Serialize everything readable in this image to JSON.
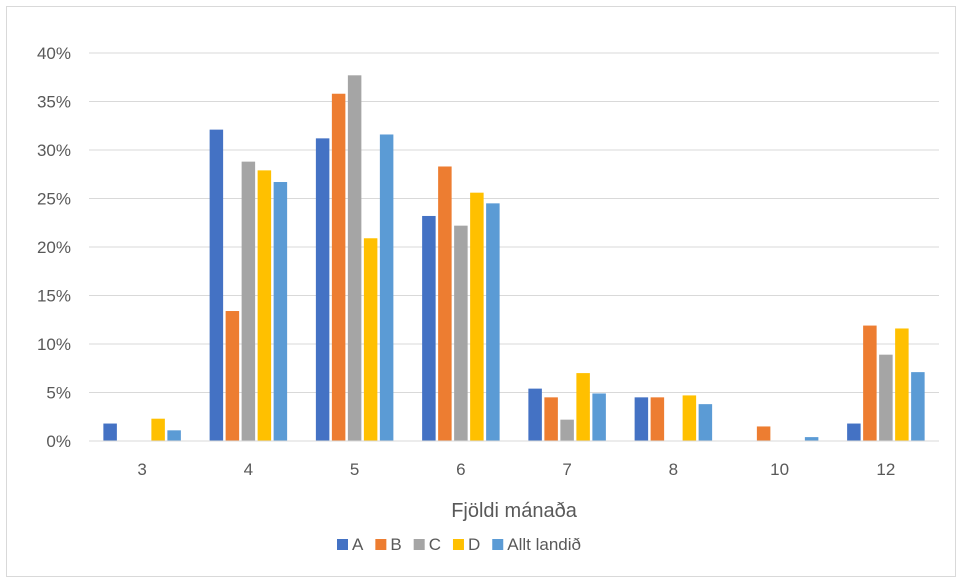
{
  "chart_data": {
    "type": "bar",
    "title": "",
    "xlabel": "Fjöldi mánaða",
    "ylabel": "",
    "categories": [
      "3",
      "4",
      "5",
      "6",
      "7",
      "8",
      "10",
      "12"
    ],
    "ylim": [
      0,
      0.4
    ],
    "yticks": [
      0,
      0.05,
      0.1,
      0.15,
      0.2,
      0.25,
      0.3,
      0.35,
      0.4
    ],
    "ytick_labels": [
      "0%",
      "5%",
      "10%",
      "15%",
      "20%",
      "25%",
      "30%",
      "35%",
      "40%"
    ],
    "grid": true,
    "legend_position": "bottom",
    "series": [
      {
        "name": "A",
        "color": "#4472C4",
        "values": [
          0.018,
          0.321,
          0.312,
          0.232,
          0.054,
          0.045,
          0.0,
          0.018
        ]
      },
      {
        "name": "B",
        "color": "#ED7D31",
        "values": [
          0.0,
          0.134,
          0.358,
          0.283,
          0.045,
          0.045,
          0.015,
          0.119
        ]
      },
      {
        "name": "C",
        "color": "#A5A5A5",
        "values": [
          0.0,
          0.288,
          0.377,
          0.222,
          0.022,
          0.0,
          0.0,
          0.089
        ]
      },
      {
        "name": "D",
        "color": "#FFC000",
        "values": [
          0.023,
          0.279,
          0.209,
          0.256,
          0.07,
          0.047,
          0.0,
          0.116
        ]
      },
      {
        "name": "Allt landið",
        "color": "#5B9BD5",
        "values": [
          0.011,
          0.267,
          0.316,
          0.245,
          0.049,
          0.038,
          0.004,
          0.071
        ]
      }
    ]
  }
}
